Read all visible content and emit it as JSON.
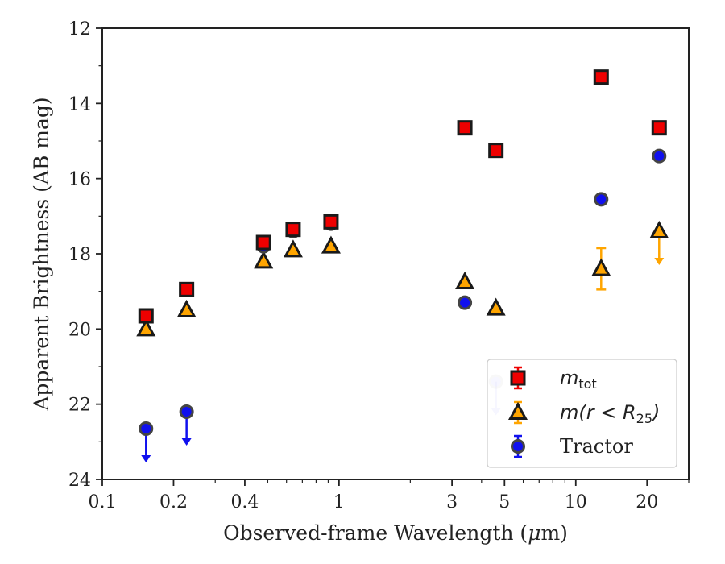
{
  "chart_data": {
    "type": "scatter",
    "title": "",
    "xlabel": "Observed-frame Wavelength (μm)",
    "xlabel_parts": [
      "Observed-frame Wavelength (",
      "μ",
      "m)"
    ],
    "ylabel": "Apparent Brightness (AB mag)",
    "xscale": "log",
    "xlim": [
      0.1,
      30
    ],
    "ylim": [
      24,
      12
    ],
    "y_inverted": true,
    "grid": false,
    "xticks": [
      {
        "value": 0.1,
        "label": "0.1"
      },
      {
        "value": 0.2,
        "label": "0.2"
      },
      {
        "value": 0.4,
        "label": "0.4"
      },
      {
        "value": 1,
        "label": "1"
      },
      {
        "value": 3,
        "label": "3"
      },
      {
        "value": 5,
        "label": "5"
      },
      {
        "value": 10,
        "label": "10"
      },
      {
        "value": 20,
        "label": "20"
      }
    ],
    "yticks": [
      {
        "value": 12,
        "label": "12"
      },
      {
        "value": 14,
        "label": "14"
      },
      {
        "value": 16,
        "label": "16"
      },
      {
        "value": 18,
        "label": "18"
      },
      {
        "value": 20,
        "label": "20"
      },
      {
        "value": 22,
        "label": "22"
      },
      {
        "value": 24,
        "label": "24"
      }
    ],
    "legend": {
      "placement": "lower-right",
      "entries": [
        {
          "main": "m",
          "sub": "tot",
          "series": 0
        },
        {
          "main": "m(r < R",
          "sub": "25",
          "close": ")",
          "series": 1
        },
        {
          "main": "Tractor",
          "series": 2
        }
      ]
    },
    "series": [
      {
        "marker": "square",
        "color": "#ee0000",
        "edge": "#1a1a1a",
        "points": [
          {
            "x": 0.153,
            "y": 19.65
          },
          {
            "x": 0.227,
            "y": 18.95
          },
          {
            "x": 0.48,
            "y": 17.7
          },
          {
            "x": 0.64,
            "y": 17.35
          },
          {
            "x": 0.925,
            "y": 17.15
          },
          {
            "x": 3.4,
            "y": 14.65
          },
          {
            "x": 4.6,
            "y": 15.25
          },
          {
            "x": 12.8,
            "y": 13.3
          },
          {
            "x": 22.5,
            "y": 14.65
          }
        ]
      },
      {
        "marker": "triangle",
        "color": "#ffa500",
        "edge": "#1a1a1a",
        "points": [
          {
            "x": 0.153,
            "y": 20.0
          },
          {
            "x": 0.227,
            "y": 19.5
          },
          {
            "x": 0.48,
            "y": 18.2
          },
          {
            "x": 0.64,
            "y": 17.9
          },
          {
            "x": 0.925,
            "y": 17.8
          },
          {
            "x": 3.4,
            "y": 18.75
          },
          {
            "x": 4.6,
            "y": 19.45
          },
          {
            "x": 12.8,
            "y": 18.4,
            "err": [
              17.85,
              18.95
            ]
          },
          {
            "x": 22.5,
            "y": 17.4,
            "upper_limit": true
          }
        ]
      },
      {
        "marker": "circle",
        "color": "#1010ee",
        "edge": "#444444",
        "points": [
          {
            "x": 0.153,
            "y": 22.65,
            "upper_limit": true
          },
          {
            "x": 0.227,
            "y": 22.2,
            "upper_limit": true
          },
          {
            "x": 0.48,
            "y": 17.8
          },
          {
            "x": 0.64,
            "y": 17.4
          },
          {
            "x": 0.925,
            "y": 17.2
          },
          {
            "x": 3.4,
            "y": 19.3
          },
          {
            "x": 4.6,
            "y": 21.4,
            "upper_limit": true,
            "faded": true
          },
          {
            "x": 12.8,
            "y": 16.55
          },
          {
            "x": 22.5,
            "y": 15.4
          }
        ]
      }
    ]
  }
}
